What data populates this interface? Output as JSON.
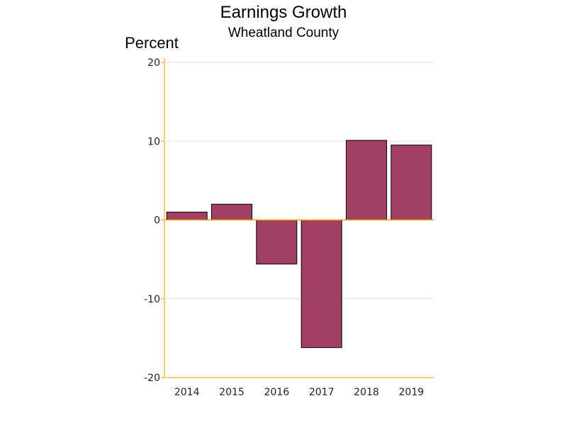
{
  "chart_data": {
    "type": "bar",
    "title": "Earnings Growth",
    "subtitle": "Wheatland County",
    "ylabel": "Percent",
    "xlabel": "",
    "categories": [
      "2014",
      "2015",
      "2016",
      "2017",
      "2018",
      "2019"
    ],
    "values": [
      1.0,
      2.0,
      -5.6,
      -16.2,
      10.1,
      9.5
    ],
    "ylim": [
      -20,
      20
    ],
    "yticks": [
      "20",
      "10",
      "0",
      "-10",
      "-20"
    ],
    "grid": true,
    "legend": "none",
    "colors": {
      "bar": "#a04064",
      "axis": "#f0a000",
      "grid": "#e6e6e6"
    }
  }
}
